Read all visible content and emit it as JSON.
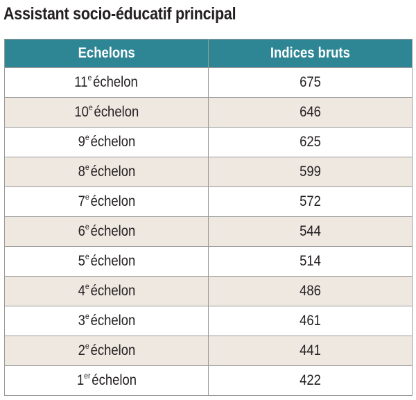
{
  "title": "Assistant socio-éducatif principal",
  "table": {
    "headers": [
      "Echelons",
      "Indices bruts"
    ],
    "rows": [
      {
        "num": "11",
        "sup": "e",
        "label": "échelon",
        "index": "675"
      },
      {
        "num": "10",
        "sup": "e",
        "label": "échelon",
        "index": "646"
      },
      {
        "num": "9",
        "sup": "e",
        "label": "échelon",
        "index": "625"
      },
      {
        "num": "8",
        "sup": "e",
        "label": "échelon",
        "index": "599"
      },
      {
        "num": "7",
        "sup": "e",
        "label": "échelon",
        "index": "572"
      },
      {
        "num": "6",
        "sup": "e",
        "label": "échelon",
        "index": "544"
      },
      {
        "num": "5",
        "sup": "e",
        "label": "échelon",
        "index": "514"
      },
      {
        "num": "4",
        "sup": "e",
        "label": "échelon",
        "index": "486"
      },
      {
        "num": "3",
        "sup": "e",
        "label": "échelon",
        "index": "461"
      },
      {
        "num": "2",
        "sup": "e",
        "label": "échelon",
        "index": "441"
      },
      {
        "num": "1",
        "sup": "er",
        "label": "échelon",
        "index": "422"
      }
    ]
  },
  "colors": {
    "header_bg": "#2e8694",
    "header_text": "#ffffff",
    "alt_row_bg": "#efe8e1",
    "border": "#9a9a9a"
  }
}
